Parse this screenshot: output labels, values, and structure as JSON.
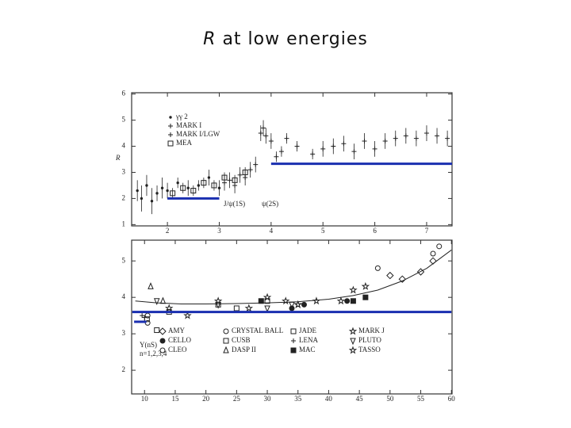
{
  "title": {
    "symbol": "R",
    "text": "at low energies"
  },
  "chart_data": [
    {
      "type": "scatter",
      "ylabel": "R",
      "xlim": [
        1.31,
        7.49
      ],
      "xticks": [
        2,
        3,
        4,
        5,
        6,
        7
      ],
      "ylim": [
        0.95,
        6.05
      ],
      "yticks": [
        1,
        2,
        3,
        4,
        5,
        6
      ],
      "annotations": [
        "J/ψ(1S)",
        "ψ(2S)"
      ],
      "series": [
        {
          "name": "γγ 2",
          "type": "scatter",
          "marker": "dot",
          "color": "#222222",
          "x": [
            1.42,
            1.5,
            1.6,
            1.7,
            1.8,
            1.9,
            2.0,
            2.2,
            2.4,
            2.6,
            2.8,
            3.0
          ],
          "values": [
            2.3,
            2.0,
            2.5,
            1.9,
            2.2,
            2.4,
            2.3,
            2.6,
            2.4,
            2.5,
            2.8,
            2.4
          ],
          "errors": [
            0.4,
            0.5,
            0.4,
            0.5,
            0.3,
            0.4,
            0.3,
            0.2,
            0.3,
            0.2,
            0.3,
            0.3
          ]
        },
        {
          "name": "MARK I",
          "type": "scatter",
          "marker": "plus",
          "color": "#222222",
          "x": [
            3.1,
            3.2,
            3.3,
            3.4,
            3.5,
            3.6,
            3.7,
            3.8,
            3.85,
            3.9,
            4.0,
            4.1,
            4.2,
            4.3,
            4.5,
            4.8
          ],
          "values": [
            2.6,
            2.7,
            2.5,
            2.9,
            2.8,
            3.1,
            3.3,
            4.5,
            4.7,
            4.4,
            4.2,
            3.6,
            3.8,
            4.3,
            4.0,
            3.7
          ],
          "errors": [
            0.3,
            0.3,
            0.3,
            0.3,
            0.3,
            0.3,
            0.3,
            0.3,
            0.3,
            0.3,
            0.3,
            0.2,
            0.2,
            0.2,
            0.2,
            0.2
          ]
        },
        {
          "name": "MARK I/LGW",
          "type": "scatter",
          "marker": "plus",
          "color": "#222222",
          "x": [
            5.0,
            5.2,
            5.4,
            5.6,
            5.8,
            6.0,
            6.2,
            6.4,
            6.6,
            6.8,
            7.0,
            7.2,
            7.4
          ],
          "values": [
            3.9,
            4.0,
            4.1,
            3.8,
            4.2,
            3.9,
            4.2,
            4.3,
            4.4,
            4.3,
            4.5,
            4.4,
            4.3
          ],
          "errors": [
            0.3,
            0.3,
            0.3,
            0.3,
            0.3,
            0.3,
            0.3,
            0.3,
            0.3,
            0.3,
            0.3,
            0.3,
            0.3
          ]
        },
        {
          "name": "MEA",
          "type": "scatter",
          "marker": "square-open",
          "color": "#222222",
          "x": [
            2.1,
            2.3,
            2.5,
            2.7,
            2.9,
            3.1,
            3.3,
            3.5
          ],
          "values": [
            2.2,
            2.4,
            2.3,
            2.6,
            2.5,
            2.8,
            2.7,
            3.0
          ],
          "errors": [
            0.2,
            0.2,
            0.2,
            0.2,
            0.2,
            0.2,
            0.2,
            0.2
          ]
        },
        {
          "type": "line",
          "color": "#1a2fb0",
          "x": [
            2,
            3,
            3.5,
            4,
            7.49
          ],
          "values": [
            2,
            2,
            null,
            3.33,
            3.33
          ]
        }
      ]
    },
    {
      "type": "scatter",
      "xlim": [
        7.9,
        60.1
      ],
      "xticks": [
        10,
        15,
        20,
        25,
        30,
        35,
        40,
        45,
        50,
        55,
        60
      ],
      "ylim": [
        1.35,
        5.57
      ],
      "yticks": [
        2,
        3,
        4,
        5
      ],
      "annotations": [
        "Υ(nS)",
        "n=1,2,3,4"
      ],
      "series": [
        {
          "name": "AMY",
          "type": "scatter",
          "marker": "diamond-open",
          "color": "#222222",
          "x": [
            50,
            52,
            55,
            57
          ],
          "values": [
            4.6,
            4.5,
            4.7,
            5.0
          ]
        },
        {
          "name": "CRYSTAL BALL",
          "type": "scatter",
          "marker": "circle-open",
          "color": "#222222",
          "x": [
            10.5,
            48,
            57,
            58
          ],
          "values": [
            3.5,
            4.8,
            5.2,
            5.4
          ]
        },
        {
          "name": "JADE",
          "type": "scatter",
          "marker": "square-open",
          "color": "#222222",
          "x": [
            12,
            14,
            22,
            25,
            30
          ],
          "values": [
            3.1,
            3.6,
            3.8,
            3.7,
            3.9
          ]
        },
        {
          "name": "MARK J",
          "type": "scatter",
          "marker": "star-open",
          "color": "#222222",
          "x": [
            17,
            27,
            33,
            35,
            42
          ],
          "values": [
            3.5,
            3.7,
            3.9,
            3.8,
            3.9
          ]
        },
        {
          "name": "CELLO",
          "type": "scatter",
          "marker": "circle-filled",
          "color": "#222222",
          "x": [
            34,
            36,
            43
          ],
          "values": [
            3.7,
            3.8,
            3.9
          ]
        },
        {
          "name": "CUSB",
          "type": "scatter",
          "marker": "square-open",
          "color": "#222222",
          "x": [
            10.4
          ],
          "values": [
            3.4
          ]
        },
        {
          "name": "LENA",
          "type": "scatter",
          "marker": "plus",
          "color": "#222222",
          "x": [
            9.6,
            10
          ],
          "values": [
            3.5,
            3.45
          ]
        },
        {
          "name": "PLUTO",
          "type": "scatter",
          "marker": "triangle-down",
          "color": "#222222",
          "x": [
            12,
            22,
            30,
            34
          ],
          "values": [
            3.9,
            3.8,
            3.7,
            3.8
          ]
        },
        {
          "name": "CLEO",
          "type": "scatter",
          "marker": "circle-open",
          "color": "#222222",
          "x": [
            10.5
          ],
          "values": [
            3.3
          ]
        },
        {
          "name": "DASP II",
          "type": "scatter",
          "marker": "triangle-up",
          "color": "#222222",
          "x": [
            11,
            13
          ],
          "values": [
            4.3,
            3.9
          ]
        },
        {
          "name": "MAC",
          "type": "scatter",
          "marker": "square-filled",
          "color": "#222222",
          "x": [
            29,
            44,
            46
          ],
          "values": [
            3.9,
            3.9,
            4.0
          ]
        },
        {
          "name": "TASSO",
          "type": "scatter",
          "marker": "star-open",
          "color": "#222222",
          "x": [
            14,
            22,
            30,
            35,
            38,
            44,
            46
          ],
          "values": [
            3.7,
            3.9,
            4.0,
            3.8,
            3.9,
            4.2,
            4.3
          ]
        },
        {
          "type": "line",
          "color": "#222222",
          "x": [
            8.5,
            12,
            16,
            20,
            25,
            30,
            35,
            40,
            44,
            48,
            52,
            56,
            60
          ],
          "values": [
            3.9,
            3.85,
            3.82,
            3.82,
            3.83,
            3.85,
            3.88,
            3.95,
            4.05,
            4.2,
            4.45,
            4.8,
            5.3
          ]
        },
        {
          "type": "line",
          "color": "#1a2fb0",
          "x": [
            8,
            60
          ],
          "values": [
            3.6,
            3.6
          ]
        },
        {
          "type": "line",
          "color": "#1a2fb0",
          "x": [
            8.3,
            10.3
          ],
          "values": [
            3.33,
            3.33
          ]
        }
      ]
    }
  ]
}
